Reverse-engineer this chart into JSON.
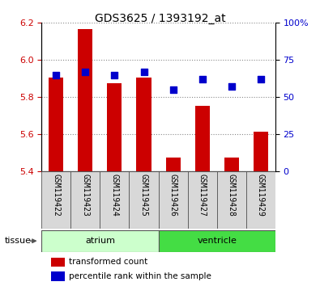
{
  "title": "GDS3625 / 1393192_at",
  "samples": [
    "GSM119422",
    "GSM119423",
    "GSM119424",
    "GSM119425",
    "GSM119426",
    "GSM119427",
    "GSM119428",
    "GSM119429"
  ],
  "transformed_counts": [
    5.905,
    6.165,
    5.875,
    5.905,
    5.475,
    5.755,
    5.475,
    5.615
  ],
  "percentile_ranks": [
    65,
    67,
    65,
    67,
    55,
    62,
    57,
    62
  ],
  "ylim_left": [
    5.4,
    6.2
  ],
  "ylim_right": [
    0,
    100
  ],
  "yticks_left": [
    5.4,
    5.6,
    5.8,
    6.0,
    6.2
  ],
  "yticks_right": [
    0,
    25,
    50,
    75,
    100
  ],
  "bar_color": "#cc0000",
  "dot_color": "#0000cc",
  "bar_width": 0.5,
  "dot_size": 40,
  "groups": [
    {
      "label": "atrium",
      "start": 0,
      "end": 3,
      "color": "#ccffcc"
    },
    {
      "label": "ventricle",
      "start": 4,
      "end": 7,
      "color": "#44dd44"
    }
  ],
  "tissue_label": "tissue",
  "legend_bar_label": "transformed count",
  "legend_dot_label": "percentile rank within the sample",
  "bar_color_hex": "#cc0000",
  "dot_color_hex": "#0000cc",
  "ylabel_left_color": "#cc0000",
  "ylabel_right_color": "#0000cc",
  "grid_color": "#888888",
  "sample_box_color": "#d8d8d8",
  "atrium_color": "#ccffcc",
  "ventricle_color": "#44dd44",
  "title_fontsize": 10,
  "tick_fontsize": 8,
  "label_fontsize": 7,
  "tissue_fontsize": 8
}
